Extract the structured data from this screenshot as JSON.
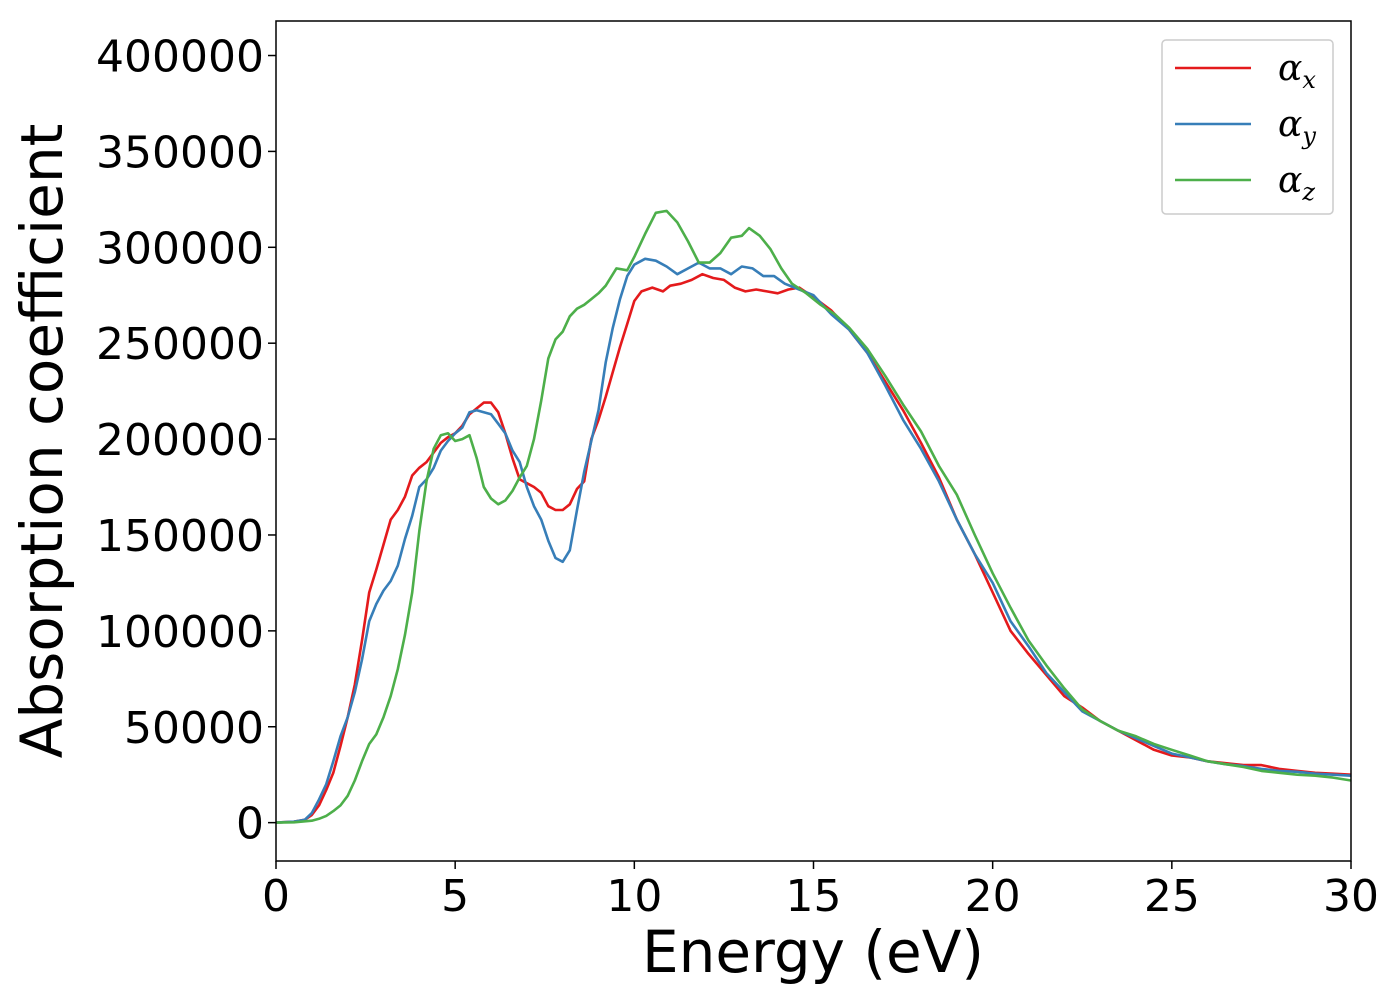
{
  "chart_data": {
    "type": "line",
    "title": "",
    "xlabel": "Energy (eV)",
    "ylabel": "Absorption coefficient",
    "xlim": [
      0,
      30
    ],
    "ylim": [
      -20000,
      418000
    ],
    "xticks": [
      0,
      5,
      10,
      15,
      20,
      25,
      30
    ],
    "yticks": [
      0,
      50000,
      100000,
      150000,
      200000,
      250000,
      300000,
      350000,
      400000
    ],
    "grid": false,
    "legend_position": "top-right",
    "series": [
      {
        "name": "α_x",
        "symbol": "α",
        "subscript": "x",
        "color": "#e41a1c",
        "points": [
          [
            0,
            0
          ],
          [
            0.5,
            500
          ],
          [
            0.8,
            1500
          ],
          [
            1.0,
            4000
          ],
          [
            1.2,
            9000
          ],
          [
            1.4,
            17000
          ],
          [
            1.6,
            26000
          ],
          [
            1.8,
            40000
          ],
          [
            2.0,
            55000
          ],
          [
            2.2,
            72000
          ],
          [
            2.4,
            95000
          ],
          [
            2.6,
            120000
          ],
          [
            2.8,
            132000
          ],
          [
            3.0,
            145000
          ],
          [
            3.2,
            158000
          ],
          [
            3.4,
            163000
          ],
          [
            3.6,
            170000
          ],
          [
            3.8,
            181000
          ],
          [
            4.0,
            185000
          ],
          [
            4.2,
            188000
          ],
          [
            4.4,
            193000
          ],
          [
            4.6,
            198000
          ],
          [
            4.8,
            201000
          ],
          [
            5.0,
            203000
          ],
          [
            5.2,
            207000
          ],
          [
            5.4,
            213000
          ],
          [
            5.6,
            216000
          ],
          [
            5.8,
            219000
          ],
          [
            6.0,
            219000
          ],
          [
            6.2,
            214000
          ],
          [
            6.4,
            203000
          ],
          [
            6.6,
            190000
          ],
          [
            6.8,
            179000
          ],
          [
            7.0,
            177000
          ],
          [
            7.2,
            175000
          ],
          [
            7.4,
            172000
          ],
          [
            7.6,
            165000
          ],
          [
            7.8,
            163000
          ],
          [
            8.0,
            163000
          ],
          [
            8.2,
            166000
          ],
          [
            8.4,
            174000
          ],
          [
            8.6,
            178000
          ],
          [
            8.8,
            200000
          ],
          [
            9.0,
            210000
          ],
          [
            9.2,
            222000
          ],
          [
            9.4,
            235000
          ],
          [
            9.6,
            248000
          ],
          [
            9.8,
            260000
          ],
          [
            10.0,
            272000
          ],
          [
            10.2,
            277000
          ],
          [
            10.5,
            279000
          ],
          [
            10.8,
            277000
          ],
          [
            11.0,
            280000
          ],
          [
            11.3,
            281000
          ],
          [
            11.6,
            283000
          ],
          [
            11.9,
            286000
          ],
          [
            12.2,
            284000
          ],
          [
            12.5,
            283000
          ],
          [
            12.8,
            279000
          ],
          [
            13.1,
            277000
          ],
          [
            13.4,
            278000
          ],
          [
            13.7,
            277000
          ],
          [
            14.0,
            276000
          ],
          [
            14.3,
            278000
          ],
          [
            14.6,
            279000
          ],
          [
            15.0,
            274000
          ],
          [
            15.5,
            267000
          ],
          [
            16.0,
            257000
          ],
          [
            16.5,
            245000
          ],
          [
            17.0,
            230000
          ],
          [
            17.5,
            215000
          ],
          [
            18.0,
            198000
          ],
          [
            18.5,
            180000
          ],
          [
            19.0,
            158000
          ],
          [
            19.5,
            140000
          ],
          [
            20.0,
            120000
          ],
          [
            20.5,
            100000
          ],
          [
            21.0,
            88000
          ],
          [
            21.5,
            77000
          ],
          [
            22.0,
            66000
          ],
          [
            22.5,
            60000
          ],
          [
            23.0,
            53000
          ],
          [
            23.5,
            48000
          ],
          [
            24.0,
            43000
          ],
          [
            24.5,
            38000
          ],
          [
            25.0,
            35000
          ],
          [
            25.5,
            34000
          ],
          [
            26.0,
            32000
          ],
          [
            26.5,
            31000
          ],
          [
            27.0,
            30000
          ],
          [
            27.5,
            30000
          ],
          [
            28.0,
            28000
          ],
          [
            28.5,
            27000
          ],
          [
            29.0,
            26000
          ],
          [
            29.5,
            25500
          ],
          [
            30.0,
            25000
          ]
        ]
      },
      {
        "name": "α_y",
        "symbol": "α",
        "subscript": "y",
        "color": "#377eb8",
        "points": [
          [
            0,
            0
          ],
          [
            0.5,
            500
          ],
          [
            0.8,
            1500
          ],
          [
            1.0,
            5000
          ],
          [
            1.2,
            12000
          ],
          [
            1.4,
            20000
          ],
          [
            1.6,
            32000
          ],
          [
            1.8,
            45000
          ],
          [
            2.0,
            55000
          ],
          [
            2.2,
            68000
          ],
          [
            2.4,
            85000
          ],
          [
            2.6,
            105000
          ],
          [
            2.8,
            114000
          ],
          [
            3.0,
            121000
          ],
          [
            3.2,
            126000
          ],
          [
            3.4,
            134000
          ],
          [
            3.6,
            148000
          ],
          [
            3.8,
            160000
          ],
          [
            4.0,
            175000
          ],
          [
            4.2,
            179000
          ],
          [
            4.4,
            185000
          ],
          [
            4.6,
            194000
          ],
          [
            4.8,
            199000
          ],
          [
            5.0,
            203000
          ],
          [
            5.2,
            206000
          ],
          [
            5.4,
            214000
          ],
          [
            5.6,
            215000
          ],
          [
            5.8,
            214000
          ],
          [
            6.0,
            213000
          ],
          [
            6.2,
            208000
          ],
          [
            6.4,
            203000
          ],
          [
            6.6,
            194000
          ],
          [
            6.8,
            188000
          ],
          [
            7.0,
            175000
          ],
          [
            7.2,
            165000
          ],
          [
            7.4,
            158000
          ],
          [
            7.6,
            147000
          ],
          [
            7.8,
            138000
          ],
          [
            8.0,
            136000
          ],
          [
            8.2,
            142000
          ],
          [
            8.4,
            163000
          ],
          [
            8.6,
            183000
          ],
          [
            8.8,
            199000
          ],
          [
            9.0,
            215000
          ],
          [
            9.2,
            240000
          ],
          [
            9.4,
            258000
          ],
          [
            9.6,
            273000
          ],
          [
            9.8,
            285000
          ],
          [
            10.0,
            291000
          ],
          [
            10.3,
            294000
          ],
          [
            10.6,
            293000
          ],
          [
            10.9,
            290000
          ],
          [
            11.2,
            286000
          ],
          [
            11.5,
            289000
          ],
          [
            11.8,
            292000
          ],
          [
            12.1,
            289000
          ],
          [
            12.4,
            289000
          ],
          [
            12.7,
            286000
          ],
          [
            13.0,
            290000
          ],
          [
            13.3,
            289000
          ],
          [
            13.6,
            285000
          ],
          [
            13.9,
            285000
          ],
          [
            14.2,
            281000
          ],
          [
            14.6,
            278000
          ],
          [
            15.0,
            275000
          ],
          [
            15.5,
            265000
          ],
          [
            16.0,
            257000
          ],
          [
            16.5,
            245000
          ],
          [
            17.0,
            228000
          ],
          [
            17.5,
            210000
          ],
          [
            18.0,
            195000
          ],
          [
            18.5,
            178000
          ],
          [
            19.0,
            158000
          ],
          [
            19.5,
            140000
          ],
          [
            20.0,
            125000
          ],
          [
            20.5,
            105000
          ],
          [
            21.0,
            92000
          ],
          [
            21.5,
            78000
          ],
          [
            22.0,
            68000
          ],
          [
            22.5,
            58000
          ],
          [
            23.0,
            53000
          ],
          [
            23.5,
            48000
          ],
          [
            24.0,
            44000
          ],
          [
            24.5,
            40000
          ],
          [
            25.0,
            36000
          ],
          [
            25.5,
            34000
          ],
          [
            26.0,
            32000
          ],
          [
            26.5,
            30500
          ],
          [
            27.0,
            29500
          ],
          [
            27.5,
            28000
          ],
          [
            28.0,
            27000
          ],
          [
            28.5,
            26500
          ],
          [
            29.0,
            25500
          ],
          [
            29.5,
            25000
          ],
          [
            30.0,
            24500
          ]
        ]
      },
      {
        "name": "α_z",
        "symbol": "α",
        "subscript": "z",
        "color": "#4daf4a",
        "points": [
          [
            0,
            0
          ],
          [
            0.5,
            200
          ],
          [
            1.0,
            1000
          ],
          [
            1.2,
            2000
          ],
          [
            1.4,
            3500
          ],
          [
            1.6,
            6000
          ],
          [
            1.8,
            9000
          ],
          [
            2.0,
            14000
          ],
          [
            2.2,
            22000
          ],
          [
            2.4,
            32000
          ],
          [
            2.6,
            41000
          ],
          [
            2.8,
            46000
          ],
          [
            3.0,
            55000
          ],
          [
            3.2,
            66000
          ],
          [
            3.4,
            80000
          ],
          [
            3.6,
            98000
          ],
          [
            3.8,
            120000
          ],
          [
            4.0,
            152000
          ],
          [
            4.2,
            178000
          ],
          [
            4.4,
            195000
          ],
          [
            4.6,
            202000
          ],
          [
            4.8,
            203000
          ],
          [
            5.0,
            199000
          ],
          [
            5.2,
            200000
          ],
          [
            5.4,
            202000
          ],
          [
            5.6,
            190000
          ],
          [
            5.8,
            175000
          ],
          [
            6.0,
            169000
          ],
          [
            6.2,
            166000
          ],
          [
            6.4,
            168000
          ],
          [
            6.6,
            173000
          ],
          [
            6.8,
            180000
          ],
          [
            7.0,
            186000
          ],
          [
            7.2,
            200000
          ],
          [
            7.4,
            220000
          ],
          [
            7.6,
            242000
          ],
          [
            7.8,
            252000
          ],
          [
            8.0,
            256000
          ],
          [
            8.2,
            264000
          ],
          [
            8.4,
            268000
          ],
          [
            8.6,
            270000
          ],
          [
            8.8,
            273000
          ],
          [
            9.0,
            276000
          ],
          [
            9.2,
            280000
          ],
          [
            9.5,
            289000
          ],
          [
            9.8,
            288000
          ],
          [
            10.0,
            295000
          ],
          [
            10.3,
            307000
          ],
          [
            10.6,
            318000
          ],
          [
            10.9,
            319000
          ],
          [
            11.2,
            313000
          ],
          [
            11.5,
            303000
          ],
          [
            11.8,
            292000
          ],
          [
            12.1,
            292000
          ],
          [
            12.4,
            297000
          ],
          [
            12.7,
            305000
          ],
          [
            13.0,
            306000
          ],
          [
            13.2,
            310000
          ],
          [
            13.5,
            306000
          ],
          [
            13.8,
            299000
          ],
          [
            14.1,
            289000
          ],
          [
            14.4,
            281000
          ],
          [
            14.8,
            276000
          ],
          [
            15.2,
            270000
          ],
          [
            15.6,
            265000
          ],
          [
            16.0,
            258000
          ],
          [
            16.5,
            247000
          ],
          [
            17.0,
            233000
          ],
          [
            17.5,
            218000
          ],
          [
            18.0,
            204000
          ],
          [
            18.5,
            186000
          ],
          [
            19.0,
            171000
          ],
          [
            19.5,
            150000
          ],
          [
            20.0,
            130000
          ],
          [
            20.5,
            112000
          ],
          [
            21.0,
            95000
          ],
          [
            21.5,
            82000
          ],
          [
            22.0,
            70000
          ],
          [
            22.5,
            59000
          ],
          [
            23.0,
            53000
          ],
          [
            23.5,
            48000
          ],
          [
            24.0,
            45000
          ],
          [
            24.5,
            41000
          ],
          [
            25.0,
            38000
          ],
          [
            25.5,
            35000
          ],
          [
            26.0,
            32000
          ],
          [
            26.5,
            30500
          ],
          [
            27.0,
            29000
          ],
          [
            27.5,
            27000
          ],
          [
            28.0,
            26000
          ],
          [
            28.5,
            25000
          ],
          [
            29.0,
            24500
          ],
          [
            29.5,
            23500
          ],
          [
            30.0,
            22000
          ]
        ]
      }
    ]
  }
}
